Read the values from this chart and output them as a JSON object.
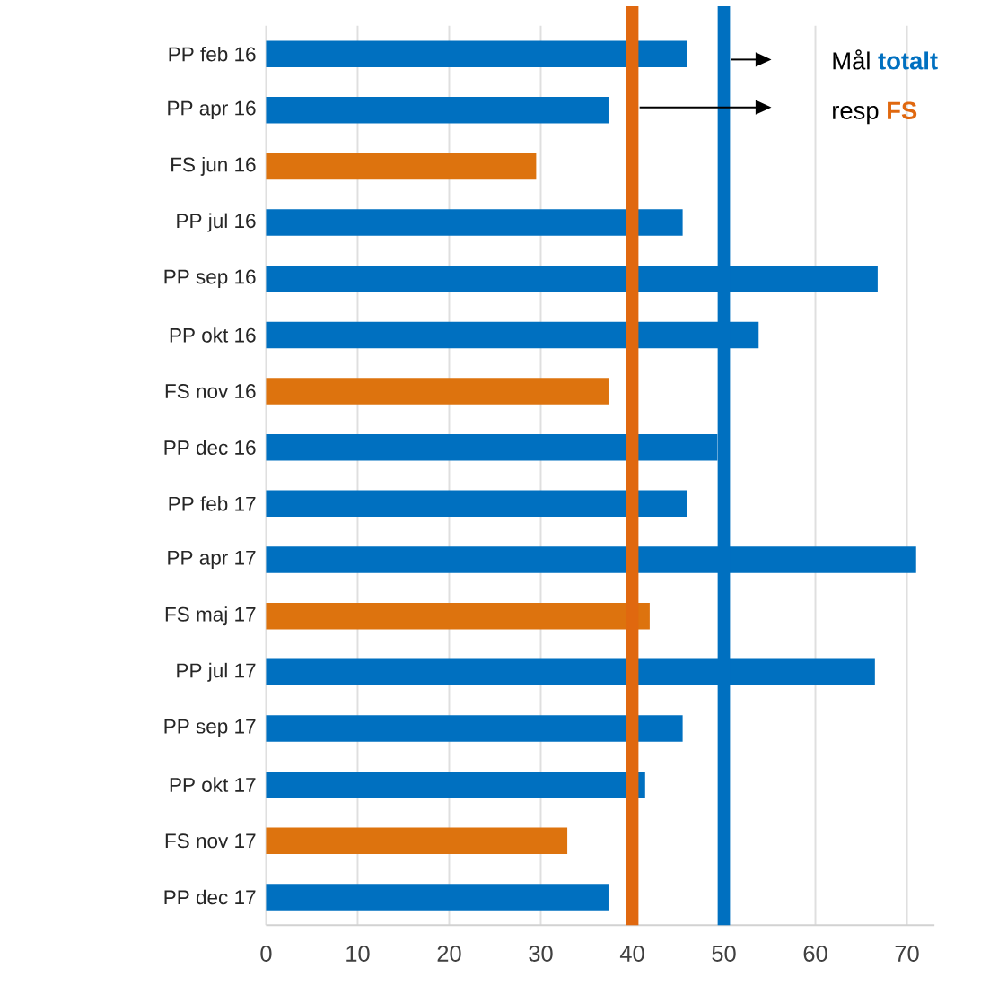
{
  "chart_data": {
    "type": "bar",
    "orientation": "horizontal",
    "categories": [
      "PP feb 16",
      "PP apr 16",
      "FS jun 16",
      "PP jul 16",
      "PP sep 16",
      "PP okt 16",
      "FS nov 16",
      "PP dec 16",
      "PP feb 17",
      "PP apr 17",
      "FS maj 17",
      "PP jul 17",
      "PP sep 17",
      "PP okt 17",
      "FS nov 17",
      "PP dec 17"
    ],
    "values": [
      46,
      37.4,
      29.5,
      45.5,
      66.8,
      53.8,
      37.4,
      49.3,
      46,
      71,
      41.9,
      66.5,
      45.5,
      41.4,
      32.9,
      37.4
    ],
    "colors": [
      "#0070c0",
      "#0070c0",
      "#dd730e",
      "#0070c0",
      "#0070c0",
      "#0070c0",
      "#dd730e",
      "#0070c0",
      "#0070c0",
      "#0070c0",
      "#dd730e",
      "#0070c0",
      "#0070c0",
      "#0070c0",
      "#dd730e",
      "#0070c0"
    ],
    "xlim": [
      0,
      73
    ],
    "xticks": [
      0,
      10,
      20,
      30,
      40,
      50,
      60,
      70
    ],
    "grid": "x",
    "ref_lines": [
      {
        "axis": "x",
        "value": 50,
        "label": "totalt",
        "color": "#0070c0"
      },
      {
        "axis": "x",
        "value": 40,
        "label": "FS",
        "color": "#e0680f"
      }
    ],
    "annotations": [
      "Mål",
      "resp"
    ]
  }
}
